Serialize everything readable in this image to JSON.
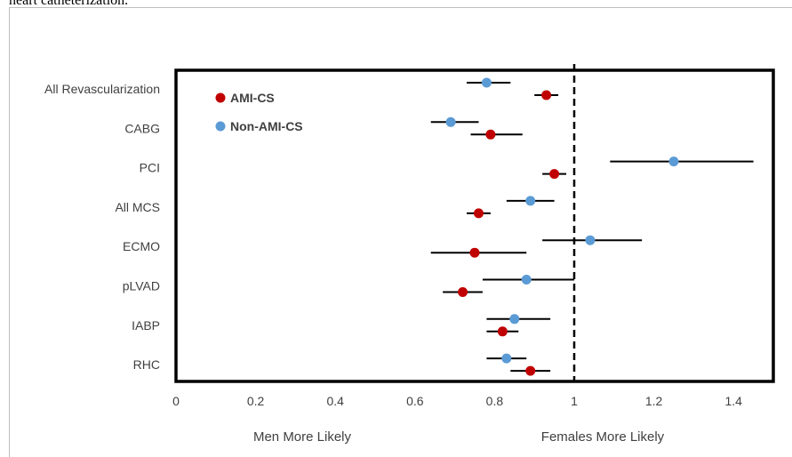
{
  "header": {
    "caption_fragment": "heart catheterization."
  },
  "chart_data": {
    "type": "scatter",
    "title": "",
    "categories": [
      "All Revascularization",
      "CABG",
      "PCI",
      "All MCS",
      "ECMO",
      "pLVAD",
      "IABP",
      "RHC"
    ],
    "xlim": [
      0,
      1.5
    ],
    "x_ticks": [
      "0",
      "0.2",
      "0.4",
      "0.6",
      "0.8",
      "1",
      "1.2",
      "1.4"
    ],
    "x_tick_values": [
      0,
      0.2,
      0.4,
      0.6,
      0.8,
      1.0,
      1.2,
      1.4
    ],
    "reference_line": 1.0,
    "axis_annotations": {
      "left": "Men More Likely",
      "right": "Females More Likely"
    },
    "legend_position": "top-left",
    "grid": false,
    "series": [
      {
        "name": "AMI-CS",
        "color": "#c00000",
        "points": [
          {
            "category": "All Revascularization",
            "x": 0.93,
            "lo": 0.9,
            "hi": 0.96
          },
          {
            "category": "CABG",
            "x": 0.79,
            "lo": 0.74,
            "hi": 0.87
          },
          {
            "category": "PCI",
            "x": 0.95,
            "lo": 0.92,
            "hi": 0.98
          },
          {
            "category": "All MCS",
            "x": 0.76,
            "lo": 0.73,
            "hi": 0.79
          },
          {
            "category": "ECMO",
            "x": 0.75,
            "lo": 0.64,
            "hi": 0.88
          },
          {
            "category": "pLVAD",
            "x": 0.72,
            "lo": 0.67,
            "hi": 0.77
          },
          {
            "category": "IABP",
            "x": 0.82,
            "lo": 0.78,
            "hi": 0.86
          },
          {
            "category": "RHC",
            "x": 0.89,
            "lo": 0.84,
            "hi": 0.94
          }
        ]
      },
      {
        "name": "Non-AMI-CS",
        "color": "#5b9bd5",
        "points": [
          {
            "category": "All Revascularization",
            "x": 0.78,
            "lo": 0.73,
            "hi": 0.84
          },
          {
            "category": "CABG",
            "x": 0.69,
            "lo": 0.64,
            "hi": 0.76
          },
          {
            "category": "PCI",
            "x": 1.25,
            "lo": 1.09,
            "hi": 1.45
          },
          {
            "category": "All MCS",
            "x": 0.89,
            "lo": 0.83,
            "hi": 0.95
          },
          {
            "category": "ECMO",
            "x": 1.04,
            "lo": 0.92,
            "hi": 1.17
          },
          {
            "category": "pLVAD",
            "x": 0.88,
            "lo": 0.77,
            "hi": 1.0
          },
          {
            "category": "IABP",
            "x": 0.85,
            "lo": 0.78,
            "hi": 0.94
          },
          {
            "category": "RHC",
            "x": 0.83,
            "lo": 0.78,
            "hi": 0.88
          }
        ]
      }
    ]
  }
}
